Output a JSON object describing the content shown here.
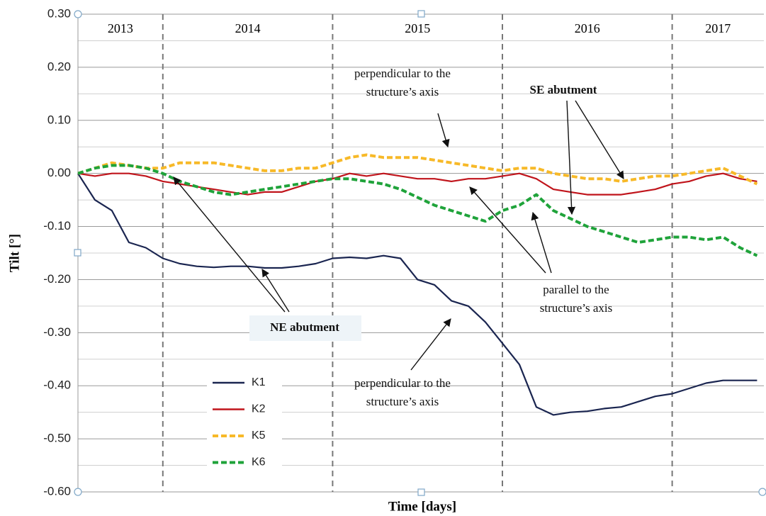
{
  "chart_data": {
    "type": "line",
    "y_label": "Tilt [°]",
    "x_label": "Time [days]",
    "year_labels": [
      "2013",
      "2014",
      "2015",
      "2016",
      "2017"
    ],
    "x_dividers": [
      2014,
      2015,
      2016,
      2017
    ],
    "xlim": [
      2013.5,
      2017.54
    ],
    "ylim": [
      -0.6,
      0.3
    ],
    "yticks": [
      {
        "value": 0.3,
        "label": "0.30"
      },
      {
        "value": 0.2,
        "label": "0.20"
      },
      {
        "value": 0.1,
        "label": "0.10"
      },
      {
        "value": 0,
        "label": "0.00"
      },
      {
        "value": -0.1,
        "label": "-0.10"
      },
      {
        "value": -0.2,
        "label": "-0.20"
      },
      {
        "value": -0.3,
        "label": "-0.30"
      },
      {
        "value": -0.4,
        "label": "-0.40"
      },
      {
        "value": -0.5,
        "label": "-0.50"
      },
      {
        "value": -0.6,
        "label": "-0.60"
      }
    ],
    "minor_yticks": [
      0.25,
      0.15,
      0.05,
      -0.05,
      -0.15,
      -0.25,
      -0.35,
      -0.45,
      -0.55
    ],
    "grid": true,
    "legend": "lower-left",
    "x": [
      2013.5,
      2013.6,
      2013.7,
      2013.8,
      2013.9,
      2014.0,
      2014.1,
      2014.2,
      2014.3,
      2014.4,
      2014.5,
      2014.6,
      2014.7,
      2014.8,
      2014.9,
      2015.0,
      2015.1,
      2015.2,
      2015.3,
      2015.4,
      2015.5,
      2015.6,
      2015.7,
      2015.8,
      2015.9,
      2016.0,
      2016.1,
      2016.2,
      2016.3,
      2016.4,
      2016.5,
      2016.6,
      2016.7,
      2016.8,
      2016.9,
      2017.0,
      2017.1,
      2017.2,
      2017.3,
      2017.4,
      2017.5
    ],
    "series": [
      {
        "name": "K1",
        "color": "#1a2550",
        "style": "solid",
        "values": [
          0,
          -0.05,
          -0.07,
          -0.13,
          -0.14,
          -0.16,
          -0.17,
          -0.175,
          -0.177,
          -0.175,
          -0.175,
          -0.178,
          -0.178,
          -0.175,
          -0.17,
          -0.16,
          -0.158,
          -0.16,
          -0.155,
          -0.16,
          -0.2,
          -0.21,
          -0.24,
          -0.25,
          -0.28,
          -0.32,
          -0.36,
          -0.44,
          -0.455,
          -0.45,
          -0.448,
          -0.443,
          -0.44,
          -0.43,
          -0.42,
          -0.415,
          -0.405,
          -0.395,
          -0.39,
          -0.39,
          -0.39
        ]
      },
      {
        "name": "K2",
        "color": "#c0141b",
        "style": "solid",
        "values": [
          0,
          -0.005,
          0,
          0,
          -0.005,
          -0.015,
          -0.02,
          -0.025,
          -0.03,
          -0.035,
          -0.04,
          -0.035,
          -0.035,
          -0.025,
          -0.015,
          -0.01,
          0,
          -0.005,
          0,
          -0.005,
          -0.01,
          -0.01,
          -0.015,
          -0.01,
          -0.01,
          -0.005,
          0,
          -0.01,
          -0.03,
          -0.035,
          -0.04,
          -0.04,
          -0.04,
          -0.035,
          -0.03,
          -0.02,
          -0.015,
          -0.005,
          0,
          -0.01,
          -0.015
        ]
      },
      {
        "name": "K5",
        "color": "#f7b928",
        "style": "dashed",
        "values": [
          0,
          0.01,
          0.02,
          0.015,
          0.01,
          0.01,
          0.02,
          0.02,
          0.02,
          0.015,
          0.01,
          0.005,
          0.005,
          0.01,
          0.01,
          0.02,
          0.03,
          0.035,
          0.03,
          0.03,
          0.03,
          0.025,
          0.02,
          0.015,
          0.01,
          0.005,
          0.01,
          0.01,
          0,
          -0.005,
          -0.01,
          -0.01,
          -0.015,
          -0.01,
          -0.005,
          -0.005,
          0,
          0.005,
          0.01,
          -0.005,
          -0.02
        ]
      },
      {
        "name": "K6",
        "color": "#1fa33a",
        "style": "dashed",
        "values": [
          0,
          0.01,
          0.015,
          0.015,
          0.01,
          0,
          -0.015,
          -0.025,
          -0.035,
          -0.04,
          -0.035,
          -0.03,
          -0.025,
          -0.02,
          -0.015,
          -0.01,
          -0.01,
          -0.015,
          -0.02,
          -0.03,
          -0.045,
          -0.06,
          -0.07,
          -0.08,
          -0.09,
          -0.07,
          -0.06,
          -0.04,
          -0.07,
          -0.085,
          -0.1,
          -0.11,
          -0.12,
          -0.13,
          -0.125,
          -0.12,
          -0.12,
          -0.125,
          -0.12,
          -0.14,
          -0.155
        ]
      }
    ],
    "annotations": [
      {
        "lines": [
          "perpendicular  to the",
          "structure’s  axis"
        ]
      },
      {
        "lines": [
          "SE abutment"
        ]
      },
      {
        "lines": [
          "parallel  to the",
          "structure’s  axis"
        ]
      },
      {
        "lines": [
          "NE abutment"
        ]
      },
      {
        "lines": [
          "perpendicular  to the",
          "structure’s  axis"
        ]
      }
    ]
  }
}
